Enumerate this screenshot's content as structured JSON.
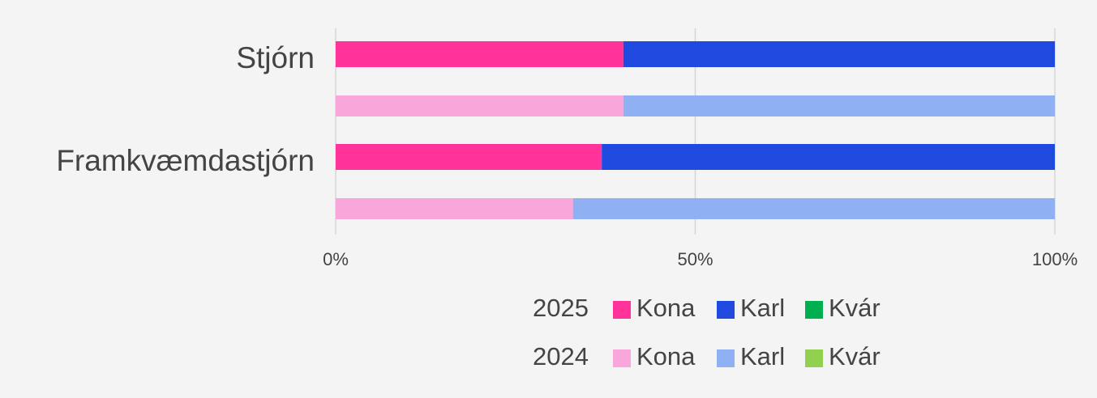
{
  "chart_data": {
    "type": "bar",
    "orientation": "horizontal",
    "stacked": true,
    "categories": [
      "Stjórn",
      "Framkvæmdastjórn"
    ],
    "groups": [
      {
        "name": "2025",
        "series": [
          {
            "name": "Kona",
            "color": "#ff3399",
            "values": [
              40,
              37
            ]
          },
          {
            "name": "Karl",
            "color": "#2049e0",
            "values": [
              60,
              63
            ]
          },
          {
            "name": "Kvár",
            "color": "#00b050",
            "values": [
              0,
              0
            ]
          }
        ]
      },
      {
        "name": "2024",
        "series": [
          {
            "name": "Kona",
            "color": "#f9a6da",
            "values": [
              40,
              33
            ]
          },
          {
            "name": "Karl",
            "color": "#8fb0f2",
            "values": [
              60,
              67
            ]
          },
          {
            "name": "Kvár",
            "color": "#92d050",
            "values": [
              0,
              0
            ]
          }
        ]
      }
    ],
    "xlim": [
      0,
      100
    ],
    "xticks": [
      {
        "value": 0,
        "label": "0%"
      },
      {
        "value": 50,
        "label": "50%"
      },
      {
        "value": 100,
        "label": "100%"
      }
    ],
    "grid": true
  }
}
